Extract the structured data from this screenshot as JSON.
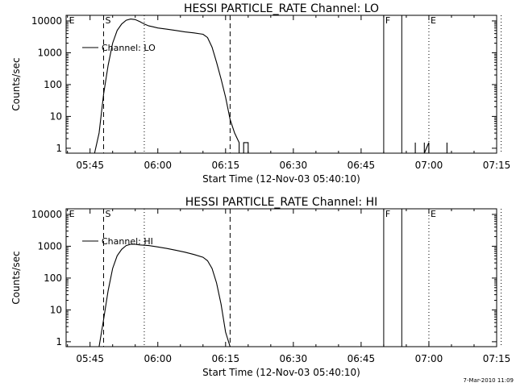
{
  "footer": {
    "timestamp": "7-Mar-2010 11:09"
  },
  "chart_data": [
    {
      "type": "line",
      "title": "HESSI PARTICLE_RATE Channel: LO",
      "xlabel": "Start Time (12-Nov-03 05:40:10)",
      "ylabel": "Counts/sec",
      "y_scale": "log",
      "ylim": [
        0.7,
        15000
      ],
      "xlim_minutes_after_05_40": [
        -0.3,
        95
      ],
      "x_ticks": [
        "05:45",
        "06:00",
        "06:15",
        "06:30",
        "06:45",
        "07:00",
        "07:15"
      ],
      "x_ticks_minutes_after_05_40": [
        5,
        20,
        35,
        50,
        65,
        80,
        95
      ],
      "y_ticks": [
        "1",
        "10",
        "100",
        "1000",
        "10000"
      ],
      "y_tick_values": [
        1,
        10,
        100,
        1000,
        10000
      ],
      "legend": {
        "label": "Channel: LO",
        "position": "top-left"
      },
      "markers": [
        {
          "label": "E",
          "time": "05:40",
          "style": "none"
        },
        {
          "label": "S",
          "time": "05:48",
          "style": "dashed"
        },
        {
          "label": "",
          "time": "05:57",
          "style": "dotted"
        },
        {
          "label": "",
          "time": "06:16",
          "style": "dashed"
        },
        {
          "label": "F",
          "time": "06:50",
          "style": "solid"
        },
        {
          "label": "",
          "time": "06:54",
          "style": "solid"
        },
        {
          "label": "E",
          "time": "07:00",
          "style": "dotted"
        },
        {
          "label": "",
          "time": "07:16",
          "style": "dotted"
        }
      ],
      "series": [
        {
          "name": "Channel: LO",
          "segments": [
            [
              [
                "05:46",
                0.7
              ],
              [
                "05:47",
                3
              ],
              [
                "05:48",
                50
              ],
              [
                "05:49",
                400
              ],
              [
                "05:50",
                2000
              ],
              [
                "05:51",
                5000
              ],
              [
                "05:52",
                8000
              ],
              [
                "05:53",
                10500
              ],
              [
                "05:54",
                11500
              ],
              [
                "05:55",
                11000
              ],
              [
                "05:56",
                9500
              ],
              [
                "05:57",
                8000
              ],
              [
                "05:58",
                7000
              ],
              [
                "05:59",
                6500
              ],
              [
                "06:00",
                6000
              ],
              [
                "06:02",
                5500
              ],
              [
                "06:04",
                5000
              ],
              [
                "06:06",
                4500
              ],
              [
                "06:08",
                4200
              ],
              [
                "06:10",
                3800
              ],
              [
                "06:11",
                3000
              ],
              [
                "06:12",
                1500
              ],
              [
                "06:13",
                500
              ],
              [
                "06:14",
                150
              ],
              [
                "06:15",
                40
              ],
              [
                "06:16",
                8
              ],
              [
                "06:17",
                3
              ],
              [
                "06:18",
                1.5
              ],
              [
                "06:18",
                0.7
              ]
            ],
            [
              [
                "06:19",
                0.7
              ],
              [
                "06:19",
                1.5
              ],
              [
                "06:20",
                1.5
              ],
              [
                "06:20",
                0.7
              ]
            ],
            [
              [
                "06:57",
                0.7
              ],
              [
                "06:57",
                1.5
              ],
              [
                "06:57",
                0.7
              ]
            ],
            [
              [
                "06:59",
                0.7
              ],
              [
                "06:59",
                1.5
              ],
              [
                "06:59",
                0.7
              ],
              [
                "07:00",
                1.5
              ],
              [
                "07:00",
                0.7
              ]
            ],
            [
              [
                "07:04",
                0.7
              ],
              [
                "07:04",
                1.5
              ],
              [
                "07:04",
                0.7
              ]
            ]
          ]
        }
      ]
    },
    {
      "type": "line",
      "title": "HESSI PARTICLE_RATE Channel: HI",
      "xlabel": "Start Time (12-Nov-03 05:40:10)",
      "ylabel": "Counts/sec",
      "y_scale": "log",
      "ylim": [
        0.7,
        15000
      ],
      "xlim_minutes_after_05_40": [
        -0.3,
        95
      ],
      "x_ticks": [
        "05:45",
        "06:00",
        "06:15",
        "06:30",
        "06:45",
        "07:00",
        "07:15"
      ],
      "x_ticks_minutes_after_05_40": [
        5,
        20,
        35,
        50,
        65,
        80,
        95
      ],
      "y_ticks": [
        "1",
        "10",
        "100",
        "1000",
        "10000"
      ],
      "y_tick_values": [
        1,
        10,
        100,
        1000,
        10000
      ],
      "legend": {
        "label": "Channel: HI",
        "position": "top-left"
      },
      "markers": [
        {
          "label": "E",
          "time": "05:40",
          "style": "none"
        },
        {
          "label": "S",
          "time": "05:48",
          "style": "dashed"
        },
        {
          "label": "",
          "time": "05:57",
          "style": "dotted"
        },
        {
          "label": "",
          "time": "06:16",
          "style": "dashed"
        },
        {
          "label": "F",
          "time": "06:50",
          "style": "solid"
        },
        {
          "label": "",
          "time": "06:54",
          "style": "solid"
        },
        {
          "label": "E",
          "time": "07:00",
          "style": "dotted"
        },
        {
          "label": "",
          "time": "07:16",
          "style": "dotted"
        }
      ],
      "series": [
        {
          "name": "Channel: HI",
          "segments": [
            [
              [
                "05:47",
                0.7
              ],
              [
                "05:48",
                5
              ],
              [
                "05:49",
                40
              ],
              [
                "05:50",
                200
              ],
              [
                "05:51",
                500
              ],
              [
                "05:52",
                800
              ],
              [
                "05:53",
                1050
              ],
              [
                "05:54",
                1150
              ],
              [
                "05:55",
                1150
              ],
              [
                "05:56",
                1100
              ],
              [
                "05:58",
                1050
              ],
              [
                "06:00",
                950
              ],
              [
                "06:02",
                850
              ],
              [
                "06:04",
                750
              ],
              [
                "06:06",
                650
              ],
              [
                "06:08",
                550
              ],
              [
                "06:10",
                450
              ],
              [
                "06:11",
                350
              ],
              [
                "06:12",
                200
              ],
              [
                "06:13",
                70
              ],
              [
                "06:14",
                15
              ],
              [
                "06:15",
                2
              ],
              [
                "06:16",
                0.7
              ]
            ]
          ]
        }
      ]
    }
  ]
}
